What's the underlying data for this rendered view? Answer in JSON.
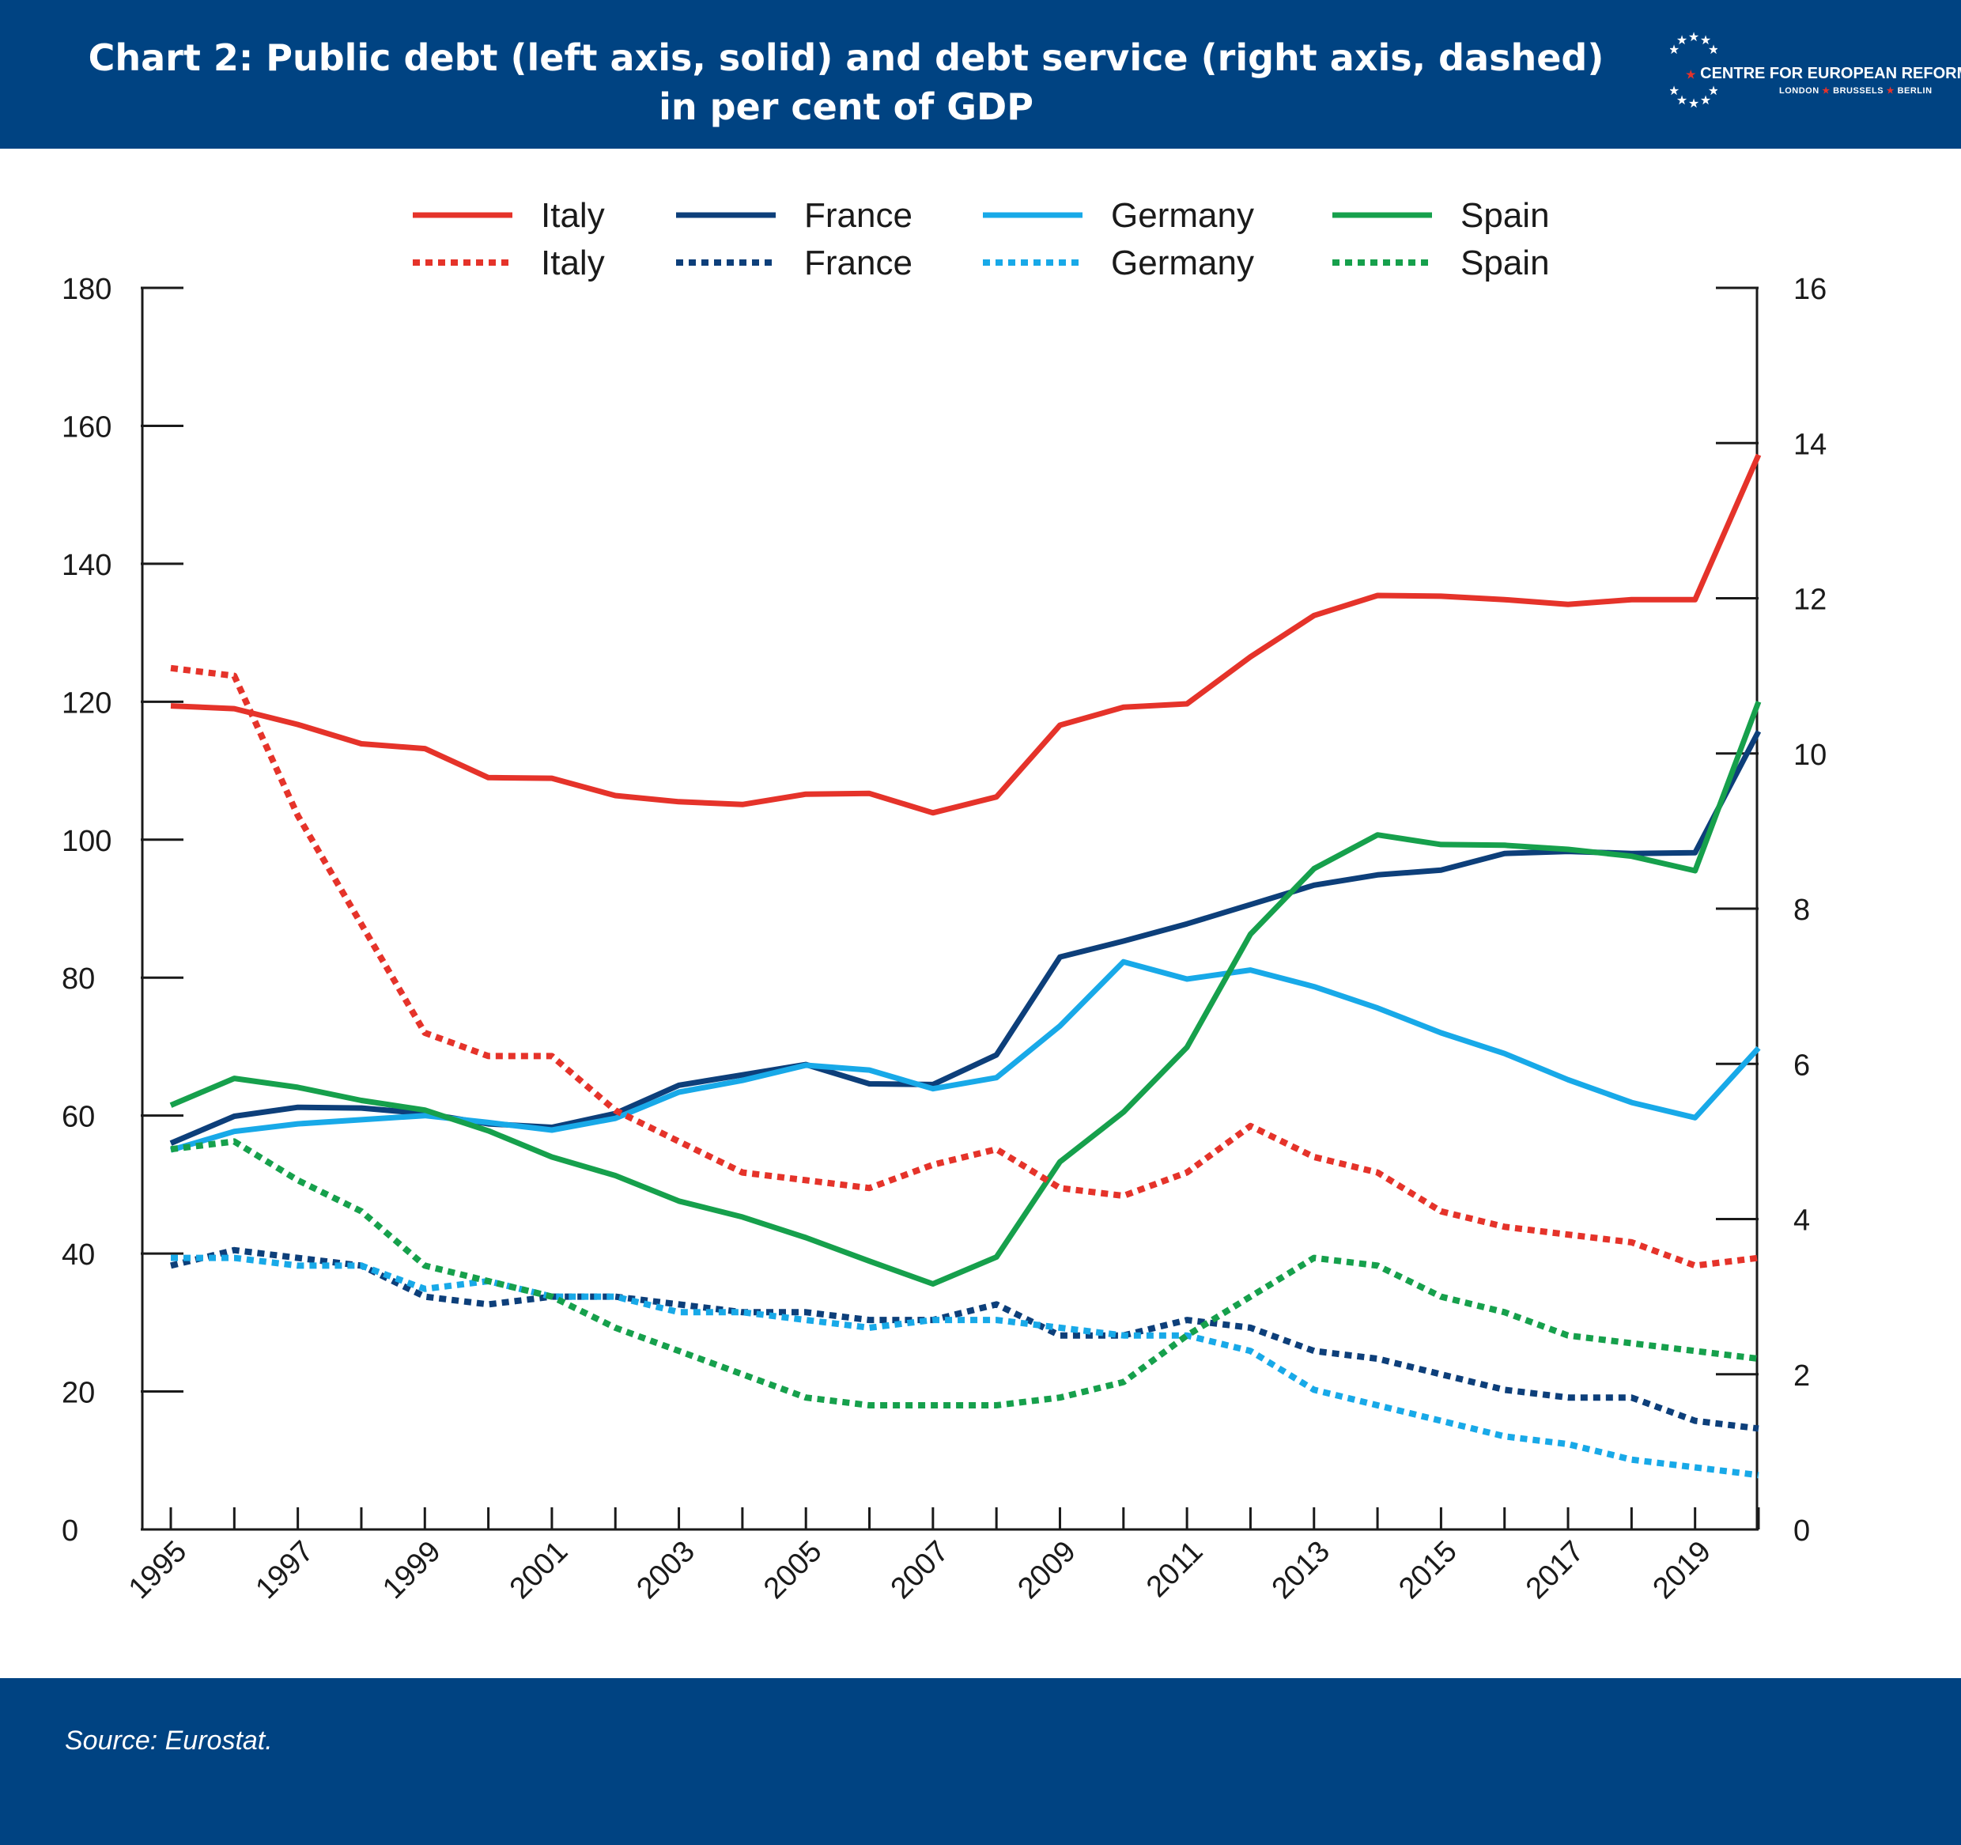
{
  "header": {
    "title_line1": "Chart 2: Public debt (left axis, solid) and debt service (right axis, dashed)",
    "title_line2": "in per cent of GDP",
    "logo_name": "CENTRE FOR EUROPEAN REFORM",
    "logo_cities": [
      "LONDON",
      "BRUSSELS",
      "BERLIN"
    ]
  },
  "footer": {
    "source": "Source: Eurostat."
  },
  "colors": {
    "Italy": "#e5332a",
    "France": "#0d3f7a",
    "Germany": "#18a9e8",
    "Spain": "#16a04c",
    "band": "#004382"
  },
  "chart_data": {
    "type": "line",
    "title": "Chart 2: Public debt (left axis, solid) and debt service (right axis, dashed) in per cent of GDP",
    "x": [
      1995,
      1996,
      1997,
      1998,
      1999,
      2000,
      2001,
      2002,
      2003,
      2004,
      2005,
      2006,
      2007,
      2008,
      2009,
      2010,
      2011,
      2012,
      2013,
      2014,
      2015,
      2016,
      2017,
      2018,
      2019,
      2020
    ],
    "x_tick_labels": [
      "1995",
      "1997",
      "1999",
      "2001",
      "2003",
      "2005",
      "2007",
      "2009",
      "2011",
      "2013",
      "2015",
      "2017",
      "2019"
    ],
    "y_left": {
      "range": [
        0,
        180
      ],
      "ticks": [
        "0",
        "20",
        "40",
        "60",
        "80",
        "100",
        "120",
        "140",
        "160",
        "180"
      ]
    },
    "y_right": {
      "range": [
        0,
        16
      ],
      "ticks": [
        "0",
        "2",
        "4",
        "6",
        "8",
        "10",
        "12",
        "14",
        "16"
      ]
    },
    "grid": false,
    "legend_position": "top",
    "series": [
      {
        "name": "Italy",
        "axis": "left",
        "style": "solid",
        "values": [
          119.4,
          119.0,
          116.7,
          113.9,
          113.2,
          109.0,
          108.9,
          106.4,
          105.5,
          105.1,
          106.6,
          106.7,
          103.9,
          106.2,
          116.6,
          119.2,
          119.7,
          126.5,
          132.5,
          135.4,
          135.3,
          134.8,
          134.1,
          134.8,
          134.8,
          155.8
        ]
      },
      {
        "name": "France",
        "axis": "left",
        "style": "solid",
        "values": [
          56.0,
          59.9,
          61.2,
          61.1,
          60.3,
          58.8,
          58.3,
          60.3,
          64.4,
          65.9,
          67.4,
          64.6,
          64.5,
          68.8,
          83.0,
          85.3,
          87.8,
          90.6,
          93.4,
          94.9,
          95.6,
          98.0,
          98.3,
          98.0,
          98.1,
          115.7
        ]
      },
      {
        "name": "Germany",
        "axis": "left",
        "style": "solid",
        "values": [
          55.0,
          57.7,
          58.8,
          59.4,
          60.0,
          59.0,
          57.9,
          59.6,
          63.4,
          65.1,
          67.3,
          66.6,
          63.9,
          65.5,
          73.0,
          82.3,
          79.8,
          81.1,
          78.7,
          75.6,
          72.0,
          69.0,
          65.2,
          61.9,
          59.7,
          69.8
        ]
      },
      {
        "name": "Spain",
        "axis": "left",
        "style": "solid",
        "values": [
          61.5,
          65.4,
          64.1,
          62.2,
          60.8,
          57.8,
          54.0,
          51.3,
          47.6,
          45.3,
          42.3,
          38.9,
          35.6,
          39.5,
          53.3,
          60.5,
          69.9,
          86.3,
          95.8,
          100.7,
          99.3,
          99.2,
          98.6,
          97.6,
          95.5,
          120.0
        ]
      },
      {
        "name": "Italy",
        "axis": "right",
        "style": "dashed",
        "values": [
          11.1,
          11.0,
          9.2,
          7.8,
          6.4,
          6.1,
          6.1,
          5.4,
          5.0,
          4.6,
          4.5,
          4.4,
          4.7,
          4.9,
          4.4,
          4.3,
          4.6,
          5.2,
          4.8,
          4.6,
          4.1,
          3.9,
          3.8,
          3.7,
          3.4,
          3.5
        ]
      },
      {
        "name": "France",
        "axis": "right",
        "style": "dashed",
        "values": [
          3.4,
          3.6,
          3.5,
          3.4,
          3.0,
          2.9,
          3.0,
          3.0,
          2.9,
          2.8,
          2.8,
          2.7,
          2.7,
          2.9,
          2.5,
          2.5,
          2.7,
          2.6,
          2.3,
          2.2,
          2.0,
          1.8,
          1.7,
          1.7,
          1.4,
          1.3
        ]
      },
      {
        "name": "Germany",
        "axis": "right",
        "style": "dashed",
        "values": [
          3.5,
          3.5,
          3.4,
          3.4,
          3.1,
          3.2,
          3.0,
          3.0,
          2.8,
          2.8,
          2.7,
          2.6,
          2.7,
          2.7,
          2.6,
          2.5,
          2.5,
          2.3,
          1.8,
          1.6,
          1.4,
          1.2,
          1.1,
          0.9,
          0.8,
          0.7
        ]
      },
      {
        "name": "Spain",
        "axis": "right",
        "style": "dashed",
        "values": [
          4.9,
          5.0,
          4.5,
          4.1,
          3.4,
          3.2,
          3.0,
          2.6,
          2.3,
          2.0,
          1.7,
          1.6,
          1.6,
          1.6,
          1.7,
          1.9,
          2.5,
          3.0,
          3.5,
          3.4,
          3.0,
          2.8,
          2.5,
          2.4,
          2.3,
          2.2
        ]
      }
    ]
  }
}
